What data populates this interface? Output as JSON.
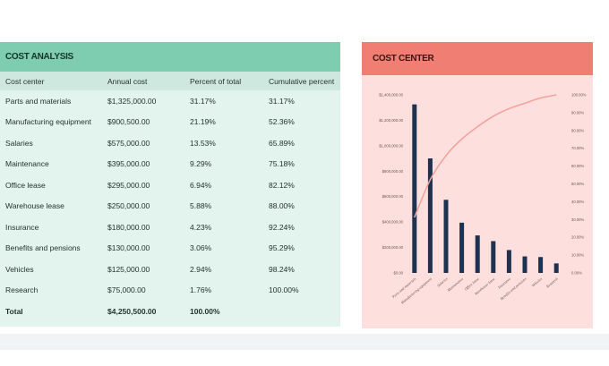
{
  "analysis": {
    "title": "COST ANALYSIS",
    "columns": [
      "Cost center",
      "Annual cost",
      "Percent of total",
      "Cumulative percent"
    ],
    "rows": [
      [
        "Parts and materials",
        "$1,325,000.00",
        "31.17%",
        "31.17%"
      ],
      [
        "Manufacturing equipment",
        "$900,500.00",
        "21.19%",
        "52.36%"
      ],
      [
        "Salaries",
        "$575,000.00",
        "13.53%",
        "65.89%"
      ],
      [
        "Maintenance",
        "$395,000.00",
        "9.29%",
        "75.18%"
      ],
      [
        "Office lease",
        "$295,000.00",
        "6.94%",
        "82.12%"
      ],
      [
        "Warehouse lease",
        "$250,000.00",
        "5.88%",
        "88.00%"
      ],
      [
        "Insurance",
        "$180,000.00",
        "4.23%",
        "92.24%"
      ],
      [
        "Benefits and pensions",
        "$130,000.00",
        "3.06%",
        "95.29%"
      ],
      [
        "Vehicles",
        "$125,000.00",
        "2.94%",
        "98.24%"
      ],
      [
        "Research",
        "$75,000.00",
        "1.76%",
        "100.00%"
      ]
    ],
    "total": [
      "Total",
      "$4,250,500.00",
      "100.00%",
      ""
    ]
  },
  "center": {
    "title": "COST CENTER",
    "chart_data": {
      "type": "bar",
      "categories": [
        "Parts and materials",
        "Manufacturing equipment",
        "Salaries",
        "Maintenance",
        "Office lease",
        "Warehouse lease",
        "Insurance",
        "Benefits and pensions",
        "Vehicles",
        "Research"
      ],
      "series": [
        {
          "type": "bar",
          "axis": "left",
          "values": [
            1325000,
            900500,
            575000,
            395000,
            295000,
            250000,
            180000,
            130000,
            125000,
            75000
          ]
        },
        {
          "type": "line",
          "axis": "right",
          "values": [
            31.17,
            52.36,
            65.89,
            75.18,
            82.12,
            88.0,
            92.24,
            95.29,
            98.24,
            100.0
          ]
        }
      ],
      "y_left_ticks": [
        "$0.00",
        "$200,000.00",
        "$400,000.00",
        "$600,000.00",
        "$800,000.00",
        "$1,000,000.00",
        "$1,200,000.00",
        "$1,400,000.00"
      ],
      "y_right_ticks": [
        "0.00%",
        "10.00%",
        "20.00%",
        "30.00%",
        "40.00%",
        "50.00%",
        "60.00%",
        "70.00%",
        "80.00%",
        "90.00%",
        "100.00%"
      ],
      "y_left_range": [
        0,
        1400000
      ],
      "y_right_range": [
        0,
        100
      ],
      "bar_color": "#1d3250",
      "line_color": "#f2a39a",
      "grid": false,
      "legend": "none"
    }
  }
}
